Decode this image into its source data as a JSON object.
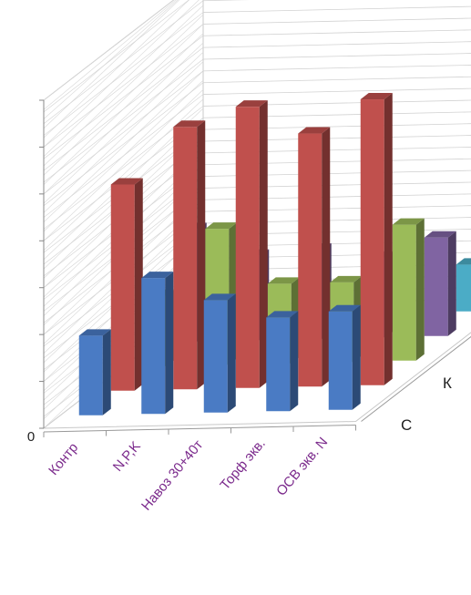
{
  "chart_data": {
    "type": "bar",
    "style": "3d-column",
    "categories": [
      "Контр",
      "N,P,K",
      "Навоз 30+40т",
      "Торф экв. ",
      "ОСВ экв. N"
    ],
    "depth_labels": [
      "С",
      "К"
    ],
    "series": [
      {
        "color": "#4a7bc4",
        "values": [
          17,
          29,
          24,
          20,
          21
        ]
      },
      {
        "color": "#c0504d",
        "values": [
          44,
          56,
          60,
          54,
          61
        ]
      },
      {
        "color": "#9bbb59",
        "values": [
          15,
          29,
          17,
          17,
          29
        ]
      },
      {
        "color": "#8064a2",
        "values": [
          24,
          18,
          19,
          17,
          21
        ]
      },
      {
        "color": "#4bacc6",
        "values": [
          null,
          null,
          null,
          null,
          10
        ]
      }
    ],
    "y_tick_labels": [
      "0"
    ],
    "ylim": [
      0,
      70
    ],
    "grid": true,
    "legend": "none"
  }
}
